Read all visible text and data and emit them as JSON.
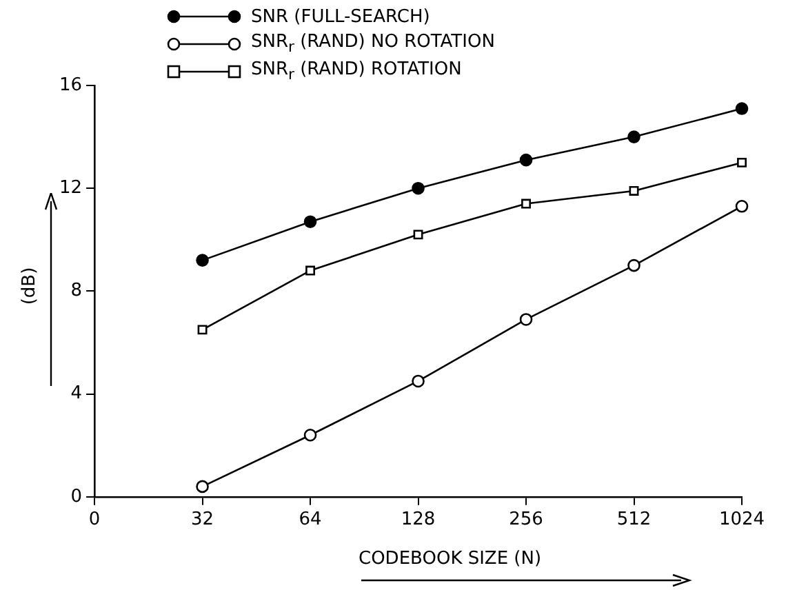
{
  "chart_data": {
    "type": "line",
    "xlabel": "CODEBOOK SIZE (N)",
    "ylabel": "(dB)",
    "categories": [
      "0",
      "32",
      "64",
      "128",
      "256",
      "512",
      "1024"
    ],
    "series": [
      {
        "name": "SNR (FULL-SEARCH)",
        "color": "#000000",
        "marker": "circle",
        "values": [
          null,
          9.2,
          10.7,
          12.0,
          13.1,
          14.0,
          15.1
        ]
      },
      {
        "name": "SNR$_{r}$ (RAND) NO ROTATION",
        "color": "#000000",
        "marker": "circle",
        "values": [
          null,
          0.4,
          2.4,
          4.5,
          6.9,
          9.0,
          11.3
        ]
      },
      {
        "name": "SNR$_{r}$ (RAND) ROTATION",
        "color": "#000000",
        "marker": "square",
        "values": [
          null,
          6.5,
          8.8,
          10.2,
          11.4,
          11.9,
          13.0
        ]
      }
    ],
    "ylim": [
      0,
      16
    ],
    "yticks": [
      0,
      4,
      8,
      12,
      16
    ],
    "grid": false,
    "legend": "top"
  }
}
